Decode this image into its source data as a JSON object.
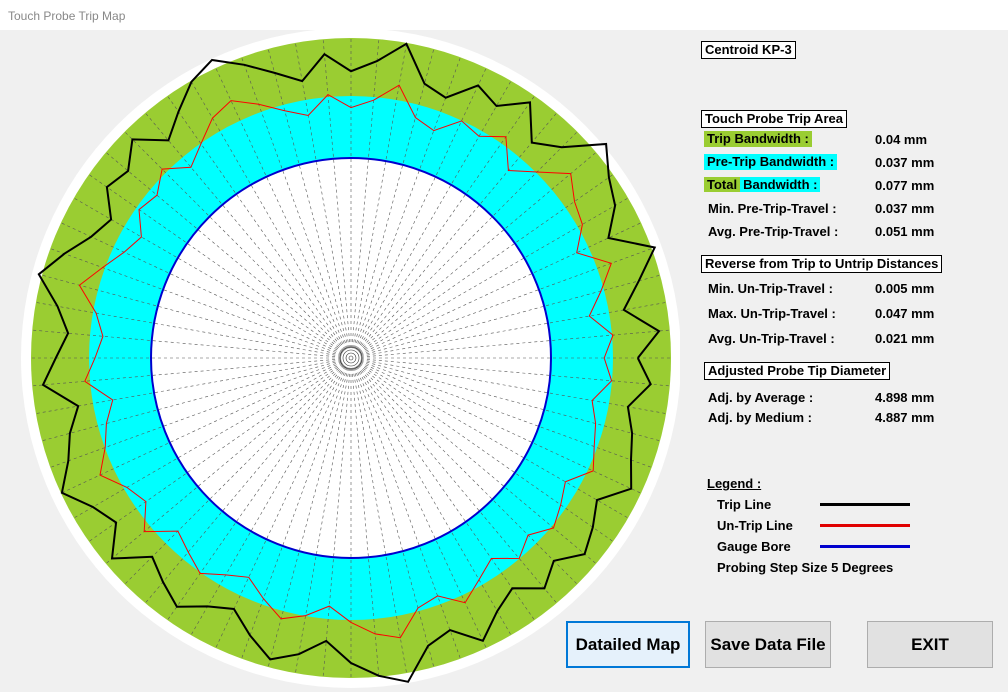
{
  "window": {
    "title": "Touch Probe Trip Map"
  },
  "colors": {
    "trip_band": "#9acd32",
    "pretrip_band": "#00ffff",
    "trip_line": "#000000",
    "untrip_line": "#ff0000",
    "gauge_bore": "#0000cd"
  },
  "probe": {
    "name": "Centroid KP-3"
  },
  "trip_area": {
    "heading": "Touch Probe Trip Area",
    "trip_bandwidth_label": "Trip Bandwidth :",
    "trip_bandwidth_value": "0.04 mm",
    "pretrip_bandwidth_label": "Pre-Trip Bandwidth :",
    "pretrip_bandwidth_value": "0.037 mm",
    "total_label_a": "Total",
    "total_label_b": "Bandwidth :",
    "total_bandwidth_value": "0.077 mm",
    "min_pretrip_label": "Min. Pre-Trip-Travel  :",
    "min_pretrip_value": "0.037 mm",
    "avg_pretrip_label": "Avg. Pre-Trip-Travel  :",
    "avg_pretrip_value": "0.051 mm"
  },
  "reverse": {
    "heading": "Reverse from Trip to Untrip Distances",
    "min_label": "Min. Un-Trip-Travel  :",
    "min_value": "0.005 mm",
    "max_label": "Max. Un-Trip-Travel  :",
    "max_value": "0.047 mm",
    "avg_label": "Avg. Un-Trip-Travel  :",
    "avg_value": "0.021 mm"
  },
  "adjusted": {
    "heading": "Adjusted Probe Tip Diameter",
    "avg_label": "Adj. by Average :",
    "avg_value": "4.898 mm",
    "med_label": "Adj. by Medium :",
    "med_value": "4.887 mm"
  },
  "legend": {
    "title": "Legend :",
    "trip_line": "Trip Line",
    "untrip_line": "Un-Trip Line",
    "gauge_bore": "Gauge Bore",
    "step_note": "Probing Step Size 5 Degrees"
  },
  "buttons": {
    "detailed_map": "Datailed Map",
    "save_data": "Save Data File",
    "exit": "EXIT"
  },
  "probe_map": {
    "step_degrees": 5,
    "trip_offsets": [
      0.62,
      0.78,
      0.55,
      0.7,
      0.88,
      0.6,
      0.75,
      0.82,
      0.95,
      0.7,
      0.58,
      0.8,
      0.65,
      0.72,
      0.55,
      0.6,
      0.85,
      0.7,
      0.62,
      0.75,
      0.58,
      0.68,
      0.8,
      0.92,
      0.85,
      0.72,
      0.6,
      0.78,
      0.65,
      0.7,
      0.55,
      0.62,
      0.75,
      0.88,
      0.7,
      0.6,
      0.68,
      0.78,
      0.55,
      0.65,
      0.72,
      0.85,
      0.7,
      0.62,
      0.8,
      0.58,
      0.66,
      0.74,
      0.62,
      0.55,
      0.68,
      0.8,
      0.72,
      0.6,
      0.75,
      0.85,
      0.92,
      0.7,
      0.64,
      0.8,
      0.66,
      0.58,
      0.72,
      0.62,
      0.75,
      0.68,
      0.6,
      0.78,
      0.7,
      0.65,
      0.58,
      0.72
    ],
    "untrip_offsets": [
      0.38,
      0.45,
      0.3,
      0.42,
      0.55,
      0.35,
      0.48,
      0.52,
      0.62,
      0.45,
      0.32,
      0.5,
      0.4,
      0.44,
      0.3,
      0.35,
      0.55,
      0.42,
      0.36,
      0.46,
      0.33,
      0.4,
      0.5,
      0.6,
      0.55,
      0.44,
      0.35,
      0.48,
      0.38,
      0.42,
      0.3,
      0.36,
      0.46,
      0.58,
      0.42,
      0.35,
      0.4,
      0.48,
      0.3,
      0.38,
      0.44,
      0.55,
      0.42,
      0.36,
      0.5,
      0.32,
      0.38,
      0.45,
      0.36,
      0.3,
      0.4,
      0.5,
      0.44,
      0.35,
      0.46,
      0.55,
      0.6,
      0.42,
      0.38,
      0.5,
      0.4,
      0.32,
      0.44,
      0.36,
      0.46,
      0.4,
      0.34,
      0.48,
      0.42,
      0.38,
      0.32,
      0.44
    ]
  }
}
